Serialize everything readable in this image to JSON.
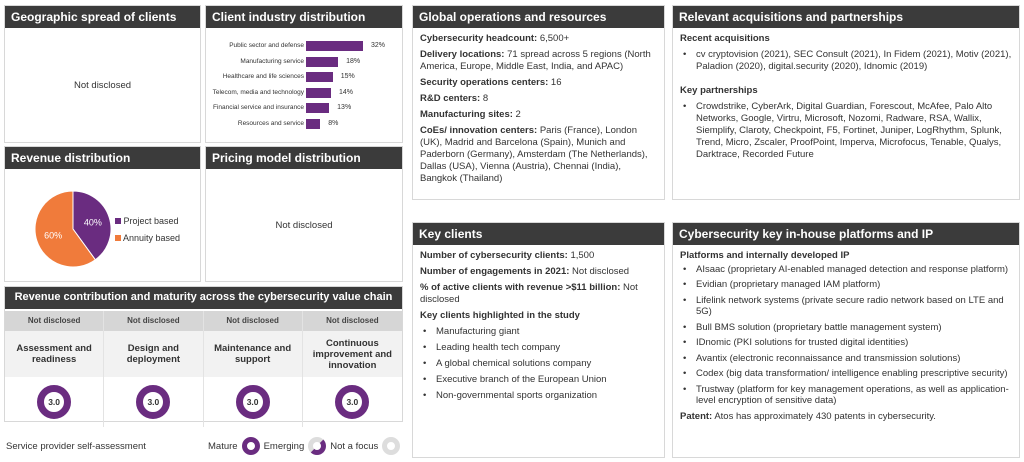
{
  "geographic": {
    "title": "Geographic spread of clients",
    "value": "Not disclosed"
  },
  "industry": {
    "title": "Client industry distribution"
  },
  "chart_data": [
    {
      "type": "bar",
      "orientation": "horizontal",
      "categories": [
        "Public sector and defense",
        "Manufacturing service",
        "Healthcare and life sciences",
        "Telecom, media and technology",
        "Financial service and insurance",
        "Resources and service"
      ],
      "values": [
        32,
        18,
        15,
        14,
        13,
        8
      ],
      "value_labels": [
        "32%",
        "18%",
        "15%",
        "14%",
        "13%",
        "8%"
      ],
      "color": "#6a2c80"
    },
    {
      "type": "pie",
      "categories": [
        "Project based",
        "Annuity based"
      ],
      "values": [
        40,
        60
      ],
      "value_labels": [
        "40%",
        "60%"
      ],
      "colors": [
        "#6a2c80",
        "#f07b3b"
      ],
      "legend": "right"
    }
  ],
  "revenue": {
    "title": "Revenue distribution"
  },
  "pricing": {
    "title": "Pricing model distribution",
    "value": "Not disclosed"
  },
  "value_chain": {
    "title": "Revenue contribution and maturity across the cybersecurity value chain",
    "columns": [
      {
        "revenue": "Not disclosed",
        "name": "Assessment and readiness",
        "score": "3.0"
      },
      {
        "revenue": "Not disclosed",
        "name": "Design and deployment",
        "score": "3.0"
      },
      {
        "revenue": "Not disclosed",
        "name": "Maintenance and support",
        "score": "3.0"
      },
      {
        "revenue": "Not disclosed",
        "name": "Continuous improvement and innovation",
        "score": "3.0"
      }
    ],
    "footer": "Service provider self-assessment",
    "legend": [
      "Mature",
      "Emerging",
      "Not a focus"
    ]
  },
  "global_ops": {
    "title": "Global operations and resources",
    "items": [
      {
        "label": "Cybersecurity headcount:",
        "value": " 6,500+"
      },
      {
        "label": "Delivery locations:",
        "value": " 71 spread across 5 regions (North America, Europe, Middle East, India, and APAC)"
      },
      {
        "label": "Security operations centers:",
        "value": " 16"
      },
      {
        "label": "R&D centers:",
        "value": " 8"
      },
      {
        "label": "Manufacturing sites:",
        "value": " 2"
      },
      {
        "label": "CoEs/ innovation centers:",
        "value": " Paris (France), London (UK), Madrid and Barcelona (Spain), Munich and Paderborn (Germany), Amsterdam (The Netherlands), Dallas (USA), Vienna (Austria), Chennai (India), Bangkok (Thailand)"
      }
    ]
  },
  "key_clients": {
    "title": "Key clients",
    "items": [
      {
        "label": "Number of cybersecurity clients:",
        "value": " 1,500"
      },
      {
        "label": "Number of engagements in 2021:",
        "value": " Not disclosed"
      },
      {
        "label": "% of active clients with revenue >$11 billion:",
        "value": " Not disclosed"
      }
    ],
    "highlight_title": "Key clients highlighted in the study",
    "highlights": [
      "Manufacturing giant",
      "Leading health tech company",
      "A global chemical solutions company",
      "Executive branch of the European Union",
      "Non-governmental sports organization"
    ]
  },
  "acquisitions": {
    "title": "Relevant acquisitions and partnerships",
    "recent_title": "Recent acquisitions",
    "recent": [
      "cv cryptovision (2021), SEC Consult (2021), In Fidem (2021), Motiv (2021), Paladion (2020), digital.security (2020), Idnomic (2019)"
    ],
    "partner_title": "Key partnerships",
    "partners": [
      "Crowdstrike, CyberArk, Digital Guardian, Forescout, McAfee, Palo Alto Networks, Google, Virtru, Microsoft, Nozomi, Radware, RSA, Wallix, Siemplify, Claroty, Checkpoint, F5, Fortinet, Juniper, LogRhythm, Splunk, Trend, Micro, Zscaler, ProofPoint, Imperva, Microfocus, Tenable, Qualys, Darktrace, Recorded Future"
    ]
  },
  "platforms": {
    "title": "Cybersecurity key in-house platforms and IP",
    "sub": "Platforms and internally developed IP",
    "items": [
      "AIsaac (proprietary AI-enabled managed detection and response platform)",
      "Evidian (proprietary managed IAM platform)",
      "Lifelink network systems (private secure radio network based on LTE and 5G)",
      "Bull BMS solution (proprietary battle management system)",
      "IDnomic (PKI solutions for trusted digital identities)",
      "Avantix (electronic reconnaissance and transmission solutions)",
      "Codex (big data transformation/ intelligence enabling prescriptive security)",
      "Trustway (platform for key management operations, as well as application-level encryption of sensitive data)"
    ],
    "patent_label": "Patent:",
    "patent_value": " Atos has approximately 430 patents in cybersecurity."
  }
}
